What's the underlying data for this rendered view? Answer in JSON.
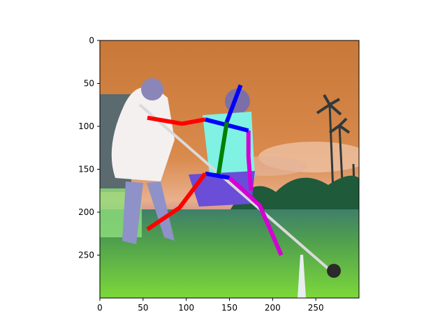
{
  "chart_data": {
    "type": "image",
    "title": "",
    "xlabel": "",
    "ylabel": "",
    "xlim": [
      0,
      300
    ],
    "ylim": [
      300,
      0
    ],
    "x_ticks": [
      0,
      50,
      100,
      150,
      200,
      250
    ],
    "y_ticks": [
      0,
      50,
      100,
      150,
      200,
      250
    ],
    "image_content": "Photo of a blind man with a white cane walking with a boy on grass near palm trees, color-shifted palette, with a pose skeleton overlay",
    "skeleton": [
      {
        "name": "head-neck",
        "color": "#0000ff",
        "points": [
          [
            163,
            52
          ],
          [
            145,
            100
          ]
        ]
      },
      {
        "name": "right-arm",
        "color": "#ff0000",
        "points": [
          [
            122,
            92
          ],
          [
            95,
            97
          ],
          [
            55,
            90
          ]
        ]
      },
      {
        "name": "left-arm",
        "color": "#d400d4",
        "points": [
          [
            172,
            105
          ],
          [
            172,
            135
          ],
          [
            175,
            175
          ]
        ]
      },
      {
        "name": "shoulders",
        "color": "#0000ff",
        "points": [
          [
            122,
            92
          ],
          [
            172,
            105
          ]
        ]
      },
      {
        "name": "torso",
        "color": "#008000",
        "points": [
          [
            147,
            95
          ],
          [
            137,
            158
          ]
        ]
      },
      {
        "name": "hips",
        "color": "#0000ff",
        "points": [
          [
            122,
            155
          ],
          [
            150,
            160
          ]
        ]
      },
      {
        "name": "right-leg",
        "color": "#ff0000",
        "points": [
          [
            122,
            155
          ],
          [
            92,
            195
          ],
          [
            55,
            220
          ]
        ]
      },
      {
        "name": "left-leg",
        "color": "#d400d4",
        "points": [
          [
            150,
            160
          ],
          [
            185,
            192
          ],
          [
            210,
            250
          ]
        ]
      }
    ]
  }
}
